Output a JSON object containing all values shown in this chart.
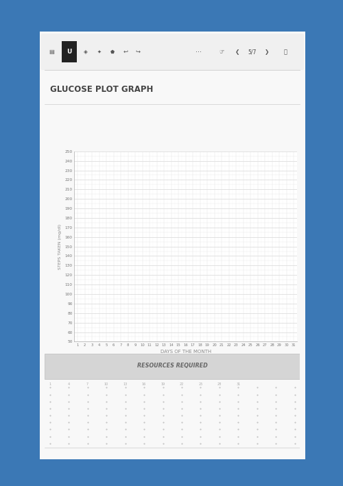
{
  "title": "GLUCOSE PLOT GRAPH",
  "ylabel": "STEPS TAKEN (mg/dl)",
  "xlabel": "DAYS OF THE MONTH",
  "y_min": 50,
  "y_max": 250,
  "y_step": 10,
  "x_ticks": [
    1,
    2,
    3,
    4,
    5,
    6,
    7,
    8,
    9,
    10,
    11,
    12,
    13,
    14,
    15,
    16,
    17,
    18,
    19,
    20,
    21,
    22,
    23,
    24,
    25,
    26,
    27,
    28,
    29,
    30,
    31
  ],
  "bg_blue": "#3b78b5",
  "device_face": "#f8f8f8",
  "device_edge": "#d0d0d0",
  "toolbar_bg": "#f0f0f0",
  "toolbar_line": "#cccccc",
  "plot_bg": "#ffffff",
  "grid_major_color": "#cccccc",
  "grid_minor_color": "#e5e5e5",
  "grid_vert_color": "#e0e0e0",
  "title_color": "#444444",
  "tick_color": "#777777",
  "label_color": "#888888",
  "spine_color": "#aaaaaa",
  "resources_label": "RESOURCES REQUIRED",
  "resources_bg": "#d5d5d5",
  "resources_text_color": "#666666",
  "dot_color": "#bbbbbb",
  "note_cols": 14,
  "note_rows": 9,
  "separator_color": "#cccccc"
}
